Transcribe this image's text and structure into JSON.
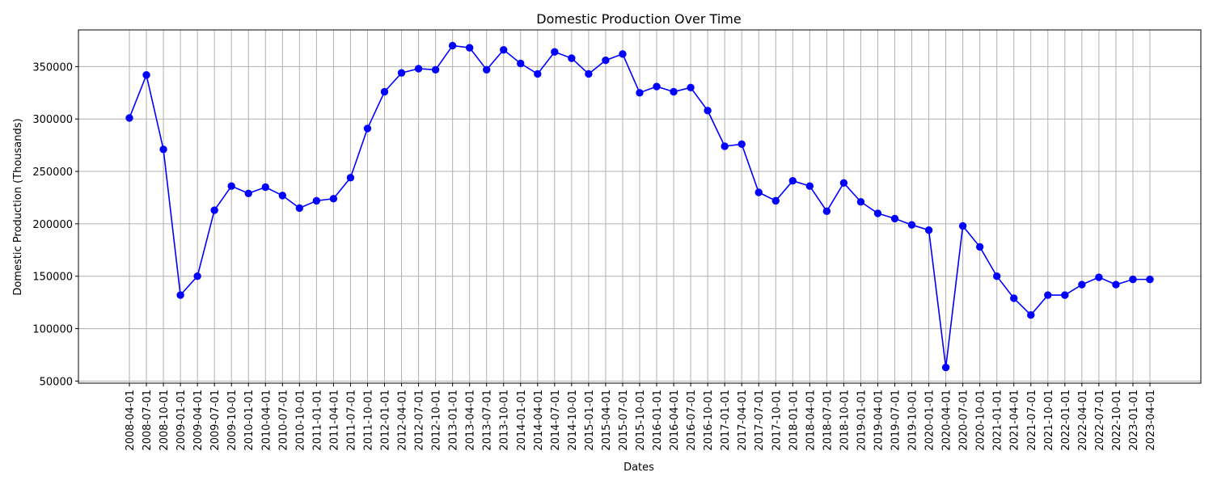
{
  "chart_data": {
    "type": "line",
    "title": "Domestic Production Over Time",
    "xlabel": "Dates",
    "ylabel": "Domestic Production (Thousands)",
    "ylim": [
      48000,
      385000
    ],
    "yticks": [
      50000,
      100000,
      150000,
      200000,
      250000,
      300000,
      350000
    ],
    "grid": true,
    "color": "#0000ff",
    "x": [
      "2008-04-01",
      "2008-07-01",
      "2008-10-01",
      "2009-01-01",
      "2009-04-01",
      "2009-07-01",
      "2009-10-01",
      "2010-01-01",
      "2010-04-01",
      "2010-07-01",
      "2010-10-01",
      "2011-01-01",
      "2011-04-01",
      "2011-07-01",
      "2011-10-01",
      "2012-01-01",
      "2012-04-01",
      "2012-07-01",
      "2012-10-01",
      "2013-01-01",
      "2013-04-01",
      "2013-07-01",
      "2013-10-01",
      "2014-01-01",
      "2014-04-01",
      "2014-07-01",
      "2014-10-01",
      "2015-01-01",
      "2015-04-01",
      "2015-07-01",
      "2015-10-01",
      "2016-01-01",
      "2016-04-01",
      "2016-07-01",
      "2016-10-01",
      "2017-01-01",
      "2017-04-01",
      "2017-07-01",
      "2017-10-01",
      "2018-01-01",
      "2018-04-01",
      "2018-07-01",
      "2018-10-01",
      "2019-01-01",
      "2019-04-01",
      "2019-07-01",
      "2019-10-01",
      "2020-01-01",
      "2020-04-01",
      "2020-07-01",
      "2020-10-01",
      "2021-01-01",
      "2021-04-01",
      "2021-07-01",
      "2021-10-01",
      "2022-01-01",
      "2022-04-01",
      "2022-07-01",
      "2022-10-01",
      "2023-01-01",
      "2023-04-01"
    ],
    "y": [
      301000,
      342000,
      271000,
      132000,
      150000,
      213000,
      236000,
      229000,
      235000,
      227000,
      215000,
      222000,
      224000,
      244000,
      291000,
      326000,
      344000,
      348000,
      347000,
      370000,
      368000,
      347000,
      366000,
      353000,
      343000,
      364000,
      358000,
      343000,
      356000,
      362000,
      325000,
      331000,
      326000,
      330000,
      308000,
      274000,
      276000,
      230000,
      222000,
      241000,
      236000,
      212000,
      239000,
      221000,
      210000,
      205000,
      199000,
      194000,
      63000,
      198000,
      178000,
      150000,
      129000,
      113000,
      132000,
      132000,
      142000,
      149000,
      142000,
      147000,
      147000
    ]
  }
}
